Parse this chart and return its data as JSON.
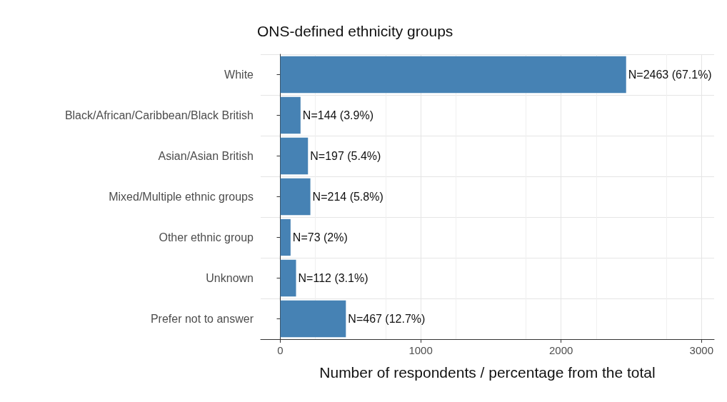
{
  "chart_data": {
    "type": "bar",
    "orientation": "horizontal",
    "title": "ONS-defined ethnicity groups",
    "xlabel": "Number of respondents / percentage from the total",
    "categories": [
      "White",
      "Black/African/Caribbean/Black British",
      "Asian/Asian British",
      "Mixed/Multiple ethnic groups",
      "Other ethnic group",
      "Unknown",
      "Prefer not to answer"
    ],
    "values": [
      2463,
      144,
      197,
      214,
      73,
      112,
      467
    ],
    "value_labels": [
      "N=2463 (67.1%)",
      "N=144 (3.9%)",
      "N=197 (5.4%)",
      "N=214 (5.8%)",
      "N=73 (2%)",
      "N=112 (3.1%)",
      "N=467 (12.7%)"
    ],
    "color": "#4682b4",
    "xlim": [
      -140,
      3090
    ],
    "xticks": [
      0,
      1000,
      2000,
      3000
    ],
    "grid": true
  }
}
